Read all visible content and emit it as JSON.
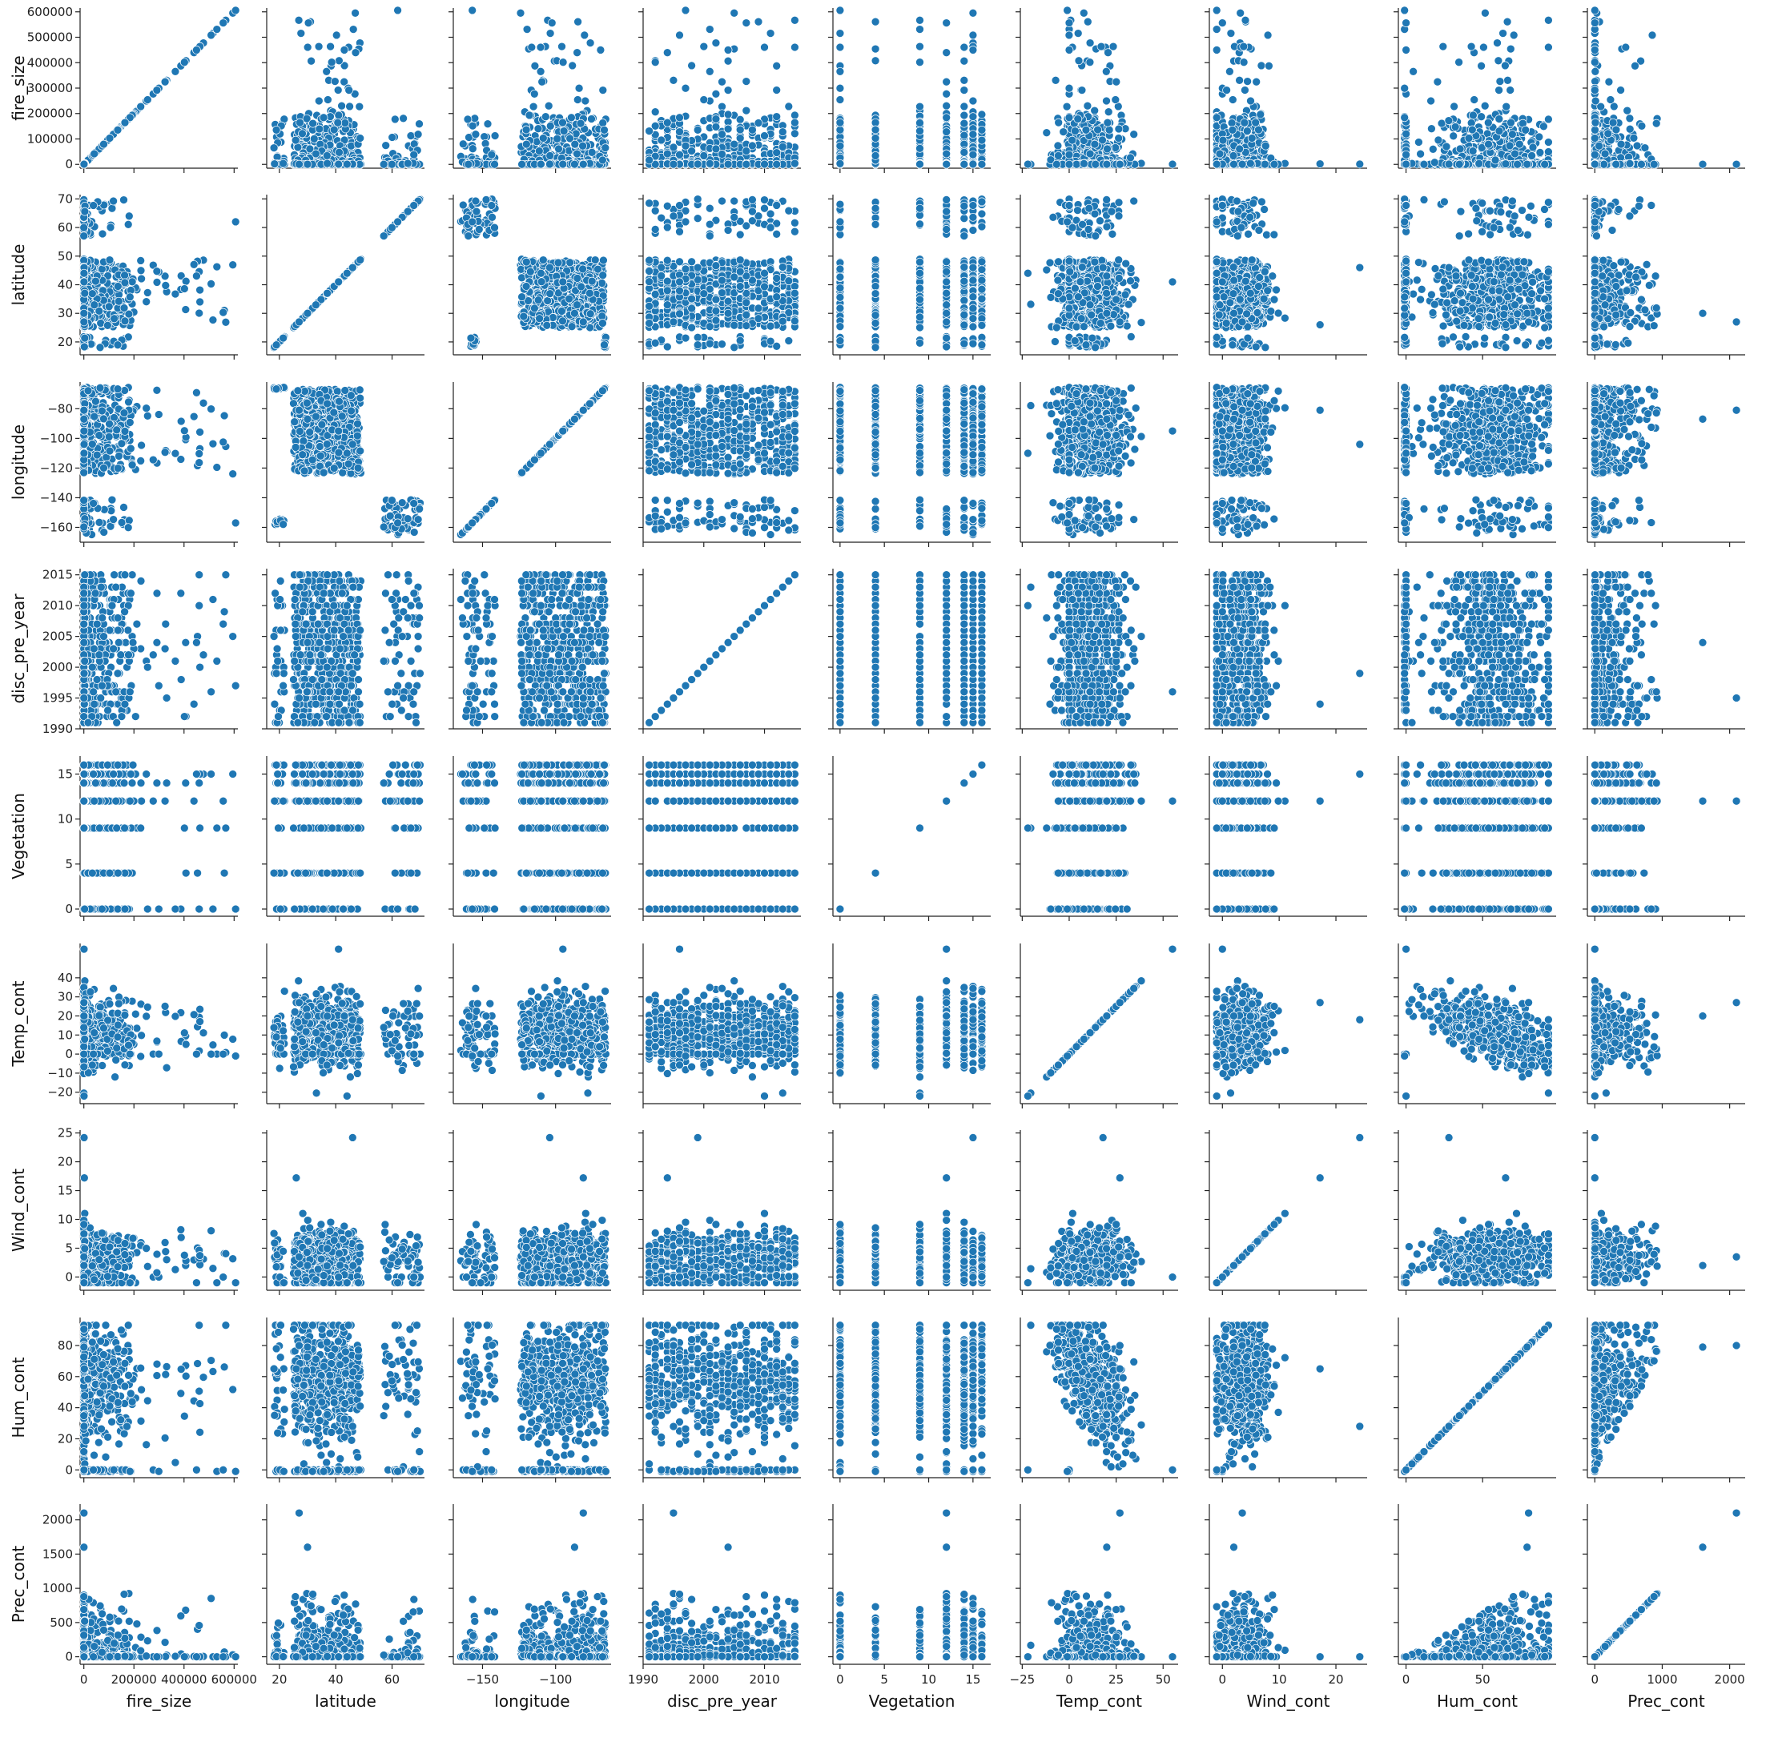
{
  "colors": {
    "marker": "#1f77b4",
    "marker_edge": "#ffffff",
    "axes": "#222222",
    "background": "#ffffff"
  },
  "chart_data": {
    "type": "scatter",
    "layout": "pairplot",
    "variables": [
      "fire_size",
      "latitude",
      "longitude",
      "disc_pre_year",
      "Vegetation",
      "Temp_cont",
      "Wind_cont",
      "Hum_cont",
      "Prec_cont"
    ],
    "axes": {
      "fire_size": {
        "range": [
          -15000,
          615000
        ],
        "ticks": [
          0,
          100000,
          200000,
          300000,
          400000,
          500000,
          600000
        ],
        "tick_labels": [
          "0",
          "100000",
          "200000",
          "300000",
          "400000",
          "500000",
          "600000"
        ],
        "x_tick_labels": [
          "0",
          "200000",
          "400000",
          "600000"
        ]
      },
      "latitude": {
        "range": [
          15.5,
          71.5
        ],
        "ticks": [
          20,
          30,
          40,
          50,
          60,
          70
        ],
        "tick_labels": [
          "20",
          "30",
          "40",
          "50",
          "60",
          "70"
        ],
        "x_tick_labels": [
          "20",
          "40",
          "60"
        ]
      },
      "longitude": {
        "range": [
          -170,
          -62
        ],
        "ticks": [
          -160,
          -140,
          -120,
          -100,
          -80
        ],
        "tick_labels": [
          "−160",
          "−140",
          "−120",
          "−100",
          "−80"
        ],
        "x_tick_labels": [
          "−150",
          "−100"
        ]
      },
      "disc_pre_year": {
        "range": [
          1990,
          2016
        ],
        "ticks": [
          1990,
          1995,
          2000,
          2005,
          2010,
          2015
        ],
        "tick_labels": [
          "1990",
          "1995",
          "2000",
          "2005",
          "2010",
          "2015"
        ],
        "x_tick_labels": [
          "1990",
          "2000",
          "2010"
        ]
      },
      "Vegetation": {
        "range": [
          -0.8,
          17
        ],
        "ticks": [
          0,
          5,
          10,
          15
        ],
        "tick_labels": [
          "0",
          "5",
          "10",
          "15"
        ],
        "x_tick_labels": [
          "0",
          "5",
          "10",
          "15"
        ]
      },
      "Temp_cont": {
        "range": [
          -26,
          58
        ],
        "ticks": [
          -20,
          -10,
          0,
          10,
          20,
          30,
          40
        ],
        "tick_labels": [
          "−20",
          "−10",
          "0",
          "10",
          "20",
          "30",
          "40"
        ],
        "x_tick_labels": [
          "−25",
          "0",
          "25",
          "50"
        ]
      },
      "Wind_cont": {
        "range": [
          -2.3,
          25.5
        ],
        "ticks": [
          0,
          5,
          10,
          15,
          20,
          25
        ],
        "tick_labels": [
          "0",
          "5",
          "10",
          "15",
          "20",
          "25"
        ],
        "x_tick_labels": [
          "0",
          "10",
          "20"
        ]
      },
      "Hum_cont": {
        "range": [
          -5,
          98
        ],
        "ticks": [
          0,
          20,
          40,
          60,
          80
        ],
        "tick_labels": [
          "0",
          "20",
          "40",
          "60",
          "80"
        ],
        "x_tick_labels": [
          "0",
          "50"
        ]
      },
      "Prec_cont": {
        "range": [
          -110,
          2230
        ],
        "ticks": [
          0,
          500,
          1000,
          1500,
          2000
        ],
        "tick_labels": [
          "0",
          "500",
          "1000",
          "1500",
          "2000"
        ],
        "x_tick_labels": [
          "0",
          "1000",
          "2000"
        ]
      }
    },
    "observed_values": {
      "Vegetation": [
        0,
        4,
        9,
        12,
        14,
        15,
        16
      ],
      "disc_pre_year_first": 1991,
      "disc_pre_year_last": 2015
    },
    "grid": false,
    "legend": "none",
    "diagonal": "identity line of points (each variable vs itself)"
  }
}
